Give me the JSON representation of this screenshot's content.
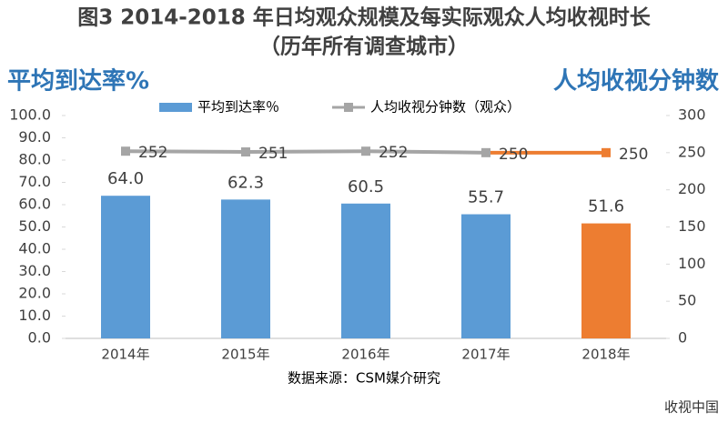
{
  "chart_data": {
    "type": "bar",
    "title": "图3 2014-2018 年日均观众规模及每实际观众人均收视时长",
    "subtitle": "（历年所有调查城市）",
    "y_axis_label": "平均到达率%",
    "y2_axis_label": "人均收视分钟数",
    "source": "数据来源：CSM媒介研究",
    "watermark": "收视中国",
    "categories": [
      "2014年",
      "2015年",
      "2016年",
      "2017年",
      "2018年"
    ],
    "series": [
      {
        "name": "平均到达率％",
        "type": "bar",
        "color": "#5b9bd5",
        "colors": [
          "#5b9bd5",
          "#5b9bd5",
          "#5b9bd5",
          "#5b9bd5",
          "#ed7d31"
        ],
        "values": [
          64.0,
          62.3,
          60.5,
          55.7,
          51.6
        ],
        "value_labels": [
          "64.0",
          "62.3",
          "60.5",
          "55.7",
          "51.6"
        ]
      },
      {
        "name": "人均收视分钟数（观众）",
        "type": "line",
        "axis": "y2",
        "color": "#a5a5a5",
        "colors": [
          "#a5a5a5",
          "#a5a5a5",
          "#a5a5a5",
          "#a5a5a5",
          "#ed7d31"
        ],
        "values": [
          252,
          251,
          252,
          250,
          250
        ]
      }
    ],
    "ylim": [
      0,
      100
    ],
    "yticks": [
      {
        "value": 0,
        "label": "0.0"
      },
      {
        "value": 10,
        "label": "10.0"
      },
      {
        "value": 20,
        "label": "20.0"
      },
      {
        "value": 30,
        "label": "30.0"
      },
      {
        "value": 40,
        "label": "40.0"
      },
      {
        "value": 50,
        "label": "50.0"
      },
      {
        "value": 60,
        "label": "60.0"
      },
      {
        "value": 70,
        "label": "70.0"
      },
      {
        "value": 80,
        "label": "80.0"
      },
      {
        "value": 90,
        "label": "90.0"
      },
      {
        "value": 100,
        "label": "100.0"
      }
    ],
    "y2lim": [
      0,
      300
    ],
    "y2ticks": [
      0,
      50,
      100,
      150,
      200,
      250,
      300
    ]
  }
}
